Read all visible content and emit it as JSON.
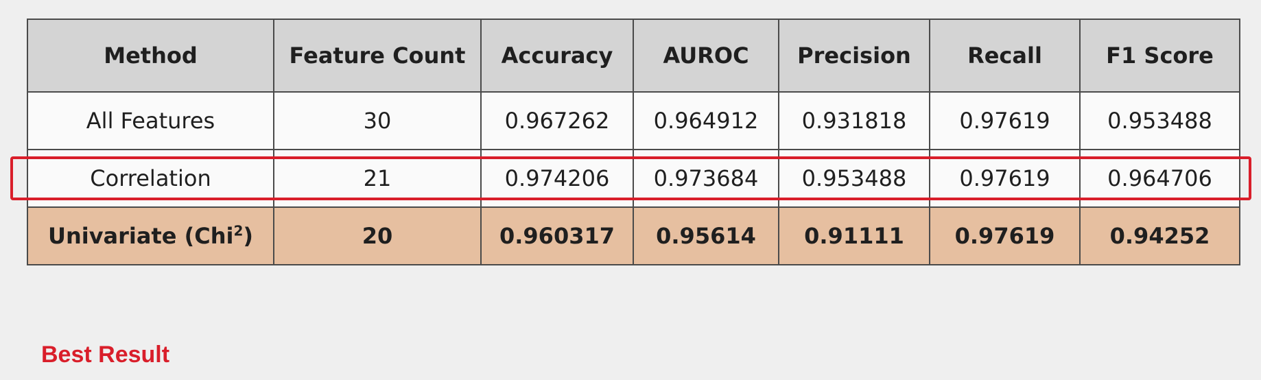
{
  "colors": {
    "header_bg": "#d4d4d4",
    "row_bg": "#fafafa",
    "highlight_row_bg": "#e6bfa0",
    "best_result_red": "#d91e2a",
    "page_bg": "#efefef"
  },
  "table": {
    "headers": [
      "Method",
      "Feature Count",
      "Accuracy",
      "AUROC",
      "Precision",
      "Recall",
      "F1 Score"
    ],
    "rows": [
      {
        "method": "All Features",
        "feature_count": "30",
        "accuracy": "0.967262",
        "auroc": "0.964912",
        "precision": "0.931818",
        "recall": "0.97619",
        "f1": "0.953488"
      },
      {
        "method": "Correlation",
        "feature_count": "21",
        "accuracy": "0.974206",
        "auroc": "0.973684",
        "precision": "0.953488",
        "recall": "0.97619",
        "f1": "0.964706"
      },
      {
        "method": "Univariate (Chi",
        "method_sup": "2",
        "method_suffix": ")",
        "feature_count": "20",
        "accuracy": "0.960317",
        "auroc": "0.95614",
        "precision": "0.91111",
        "recall": "0.97619",
        "f1": "0.94252"
      }
    ]
  },
  "best_result_label": "Best Result"
}
